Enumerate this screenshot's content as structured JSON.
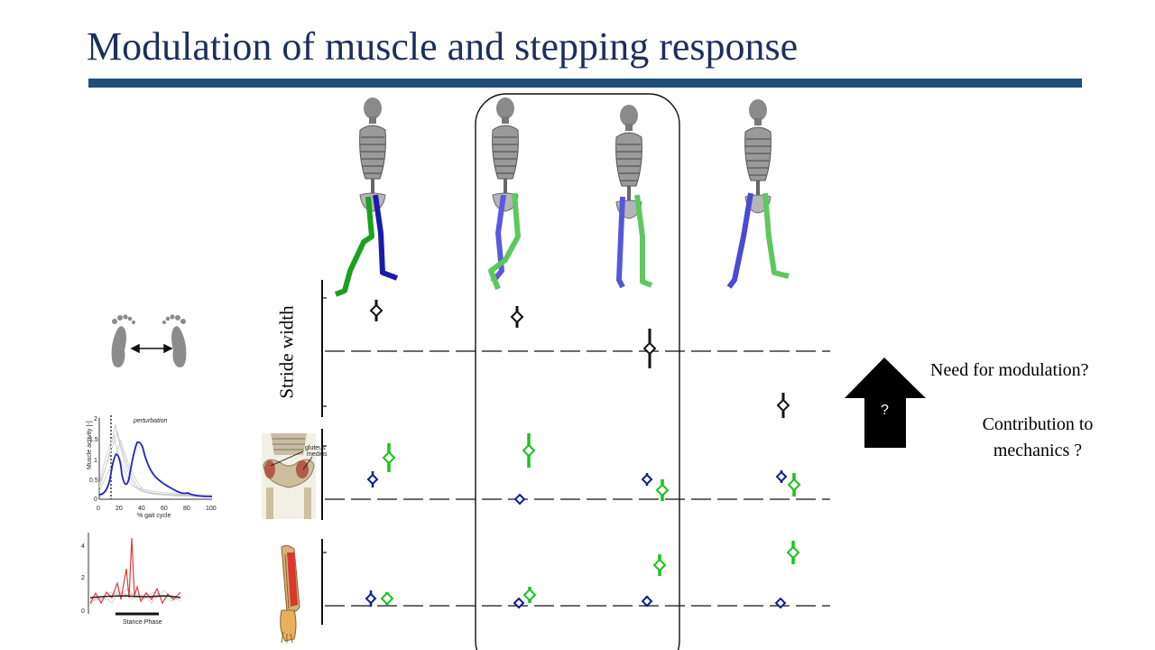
{
  "slide": {
    "title": "Modulation of muscle and stepping response",
    "y_label": "Stride width",
    "question_1": "Need for modulation?",
    "question_2": "Contribution to mechanics ?",
    "arrow_text": "?"
  },
  "inset_emg": {
    "title": "perturbation",
    "ylabel": "Muscle activity [-]",
    "xlabel": "% gait cycle",
    "xticks": [
      "0",
      "20",
      "40",
      "60",
      "80",
      "100"
    ],
    "yticks": [
      "0",
      "0.5",
      "1",
      "1.5",
      "2"
    ]
  },
  "inset_stance": {
    "label": "Stance Phase",
    "yticks": [
      "0",
      "2",
      "4"
    ]
  },
  "anatomy": {
    "gluteus_label_1": "gluteus",
    "gluteus_label_2": "medius"
  },
  "colors": {
    "title": "#1c2f5e",
    "rule": "#1f4e79",
    "blue": "#0a1d9c",
    "green": "#17c41a",
    "black": "#111111"
  }
}
